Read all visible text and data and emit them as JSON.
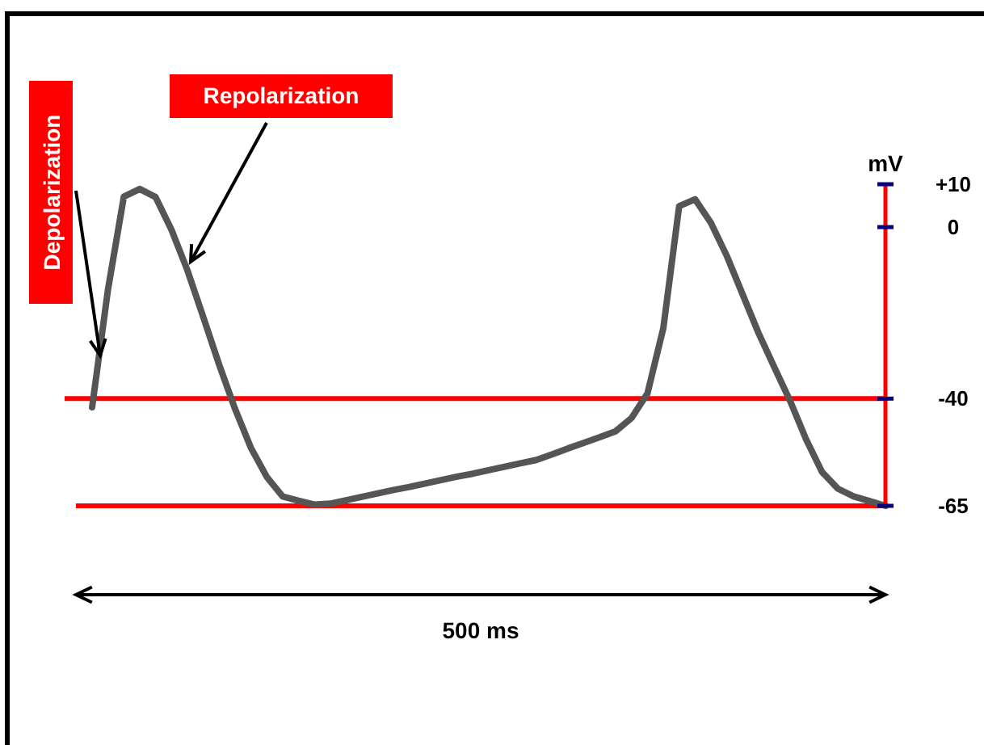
{
  "chart_data": {
    "type": "line",
    "ylabel": "mV",
    "ylim": [
      -65,
      10
    ],
    "yticks": [
      {
        "value": 10,
        "label": "+10"
      },
      0,
      -40,
      -65
    ],
    "categories": [
      null,
      null,
      null,
      null,
      null,
      null,
      null,
      null,
      null,
      null,
      null,
      null,
      null,
      null,
      null,
      null,
      null,
      null,
      null,
      null,
      null,
      null,
      null,
      null,
      null,
      null,
      null,
      null,
      null,
      null,
      null,
      null,
      null,
      null,
      null,
      null,
      null,
      null,
      null,
      null,
      null,
      null,
      null,
      null,
      null,
      null,
      null,
      null,
      null,
      null,
      null
    ],
    "series": [
      {
        "color": "#555555",
        "values": [
          -42,
          -14.6,
          7.1,
          8.9,
          7,
          -0.6,
          -10,
          -20.9,
          -32,
          -42.3,
          -51.4,
          -58.2,
          -62.8,
          -63.8,
          -64.7,
          -64.5,
          -63.7,
          -62.9,
          -62.1,
          -61.3,
          -60.6,
          -59.8,
          -59,
          -58.2,
          -57.5,
          -56.7,
          -55.9,
          -55.1,
          -54.3,
          -53,
          -51.6,
          -50.3,
          -49,
          -47.6,
          -44.5,
          -38.8,
          -23.6,
          4.9,
          6.5,
          1,
          -6.7,
          -15.7,
          -24.7,
          -32.7,
          -40.6,
          -49.5,
          -57.1,
          -61,
          -62.8,
          -63.9,
          -65
        ]
      }
    ],
    "ref_lines": [
      {
        "axis": "y",
        "value": -40,
        "color": "#ff0000"
      },
      {
        "axis": "y",
        "value": -65,
        "color": "#ff0000"
      }
    ],
    "annotations": [
      "Depolarization",
      "Repolarization",
      "500 ms"
    ]
  }
}
